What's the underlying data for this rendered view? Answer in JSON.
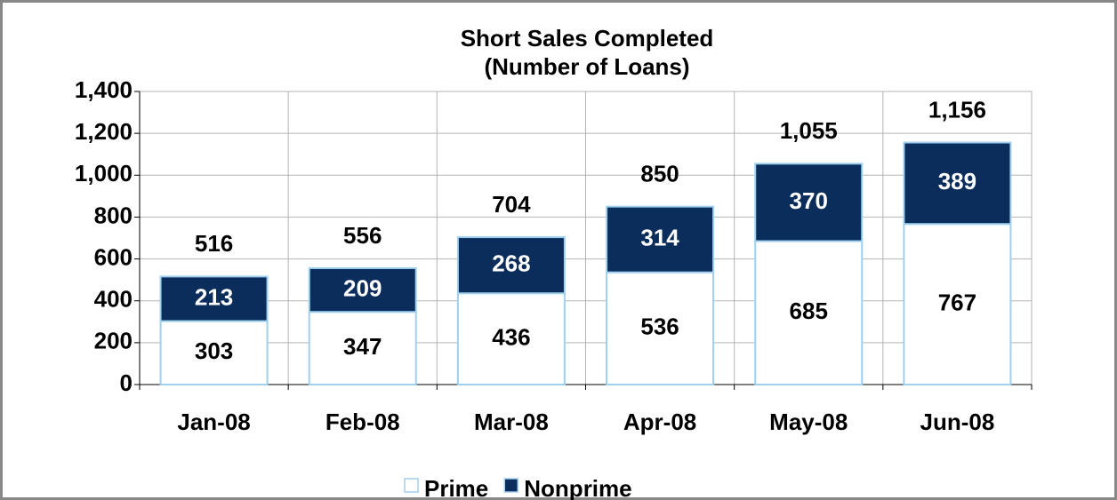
{
  "chart_data": {
    "type": "stacked_bar",
    "title": "Short Sales Completed",
    "subtitle": "(Number of Loans)",
    "categories": [
      "Jan-08",
      "Feb-08",
      "Mar-08",
      "Apr-08",
      "May-08",
      "Jun-08"
    ],
    "series": [
      {
        "name": "Prime",
        "color": "#ffffff",
        "values": [
          303,
          347,
          436,
          536,
          685,
          767
        ]
      },
      {
        "name": "Nonprime",
        "color": "#0b2d5b",
        "values": [
          213,
          209,
          268,
          314,
          370,
          389
        ]
      }
    ],
    "totals": [
      516,
      556,
      704,
      850,
      1055,
      1156
    ],
    "total_labels": [
      "516",
      "556",
      "704",
      "850",
      "1,055",
      "1,156"
    ],
    "ylim": [
      0,
      1400
    ],
    "yticks": [
      0,
      200,
      400,
      600,
      800,
      {
        "value": 1000,
        "label": "1,000"
      },
      {
        "value": 1200,
        "label": "1,200"
      },
      {
        "value": 1400,
        "label": "1,400"
      }
    ],
    "grid": true,
    "legend": "bottom"
  }
}
